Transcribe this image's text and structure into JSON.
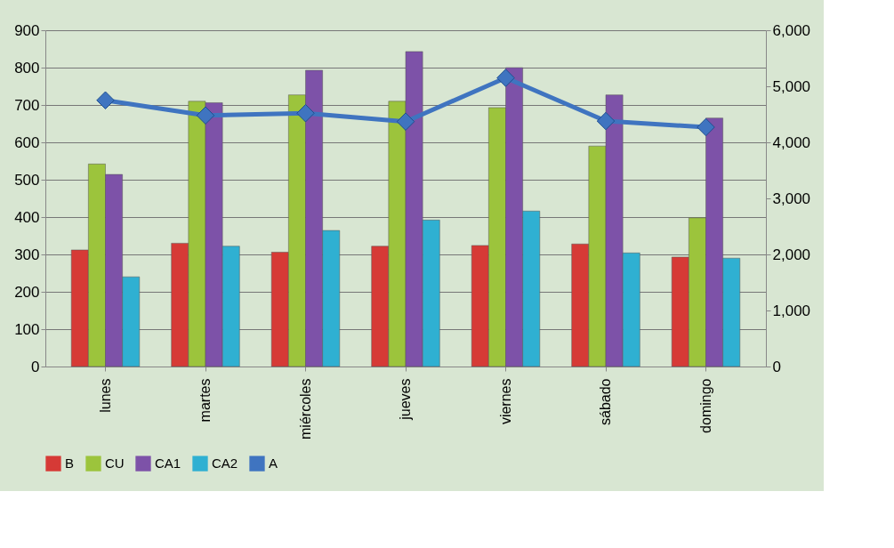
{
  "chart_data": {
    "type": "bar",
    "categories": [
      "lunes",
      "martes",
      "miércoles",
      "jueves",
      "viernes",
      "sábado",
      "domingo"
    ],
    "series": [
      {
        "name": "B",
        "color": "#d63a36",
        "values": [
          312,
          330,
          306,
          322,
          324,
          328,
          293
        ]
      },
      {
        "name": "CU",
        "color": "#9cc43c",
        "values": [
          542,
          710,
          727,
          710,
          693,
          590,
          398
        ]
      },
      {
        "name": "CA1",
        "color": "#7d52a8",
        "values": [
          514,
          706,
          793,
          843,
          800,
          727,
          665
        ]
      },
      {
        "name": "CA2",
        "color": "#2fb0d2",
        "values": [
          240,
          322,
          364,
          392,
          416,
          304,
          290
        ]
      },
      {
        "name": "A",
        "color": "#3f74c0",
        "type": "line",
        "axis": "y2",
        "marker": "diamond",
        "values": [
          4750,
          4480,
          4520,
          4370,
          5150,
          4380,
          4270
        ]
      }
    ],
    "ylim": [
      0,
      900
    ],
    "yticks": [
      0,
      100,
      200,
      300,
      400,
      500,
      600,
      700,
      800,
      900
    ],
    "y2lim": [
      0,
      6000
    ],
    "y2ticks": [
      0,
      {
        "value": 1000,
        "label": "1,000"
      },
      {
        "value": 2000,
        "label": "2,000"
      },
      {
        "value": 3000,
        "label": "3,000"
      },
      {
        "value": 4000,
        "label": "4,000"
      },
      {
        "value": 5000,
        "label": "5,000"
      },
      {
        "value": 6000,
        "label": "6,000"
      }
    ],
    "grid": "y",
    "legend": "bottom"
  }
}
